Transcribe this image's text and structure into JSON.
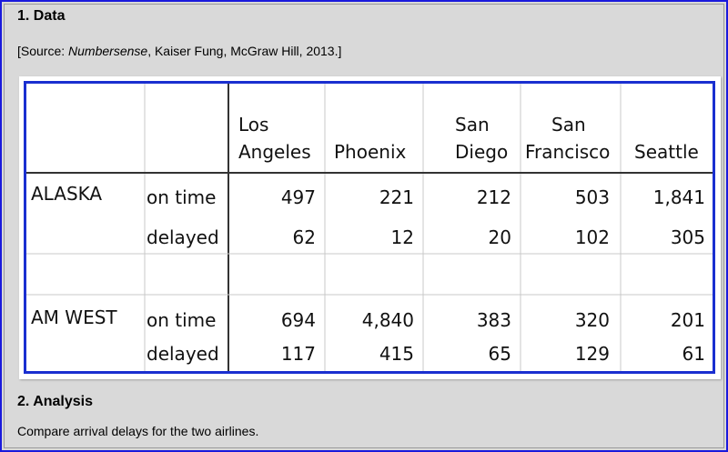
{
  "section1": {
    "heading": "1. Data",
    "source_prefix": "[Source:  ",
    "source_title": "Numbersense",
    "source_suffix": ", Kaiser Fung, McGraw Hill, 2013.]"
  },
  "table": {
    "headers": [
      "Los",
      "Angeles",
      "Phoenix",
      "San",
      "Diego",
      "San",
      "Francisco",
      "Seattle"
    ],
    "rows": [
      {
        "airline": "ALASKA",
        "status": "on time",
        "values": [
          "497",
          "221",
          "212",
          "503",
          "1,841"
        ]
      },
      {
        "airline": "",
        "status": "delayed",
        "values": [
          "62",
          "12",
          "20",
          "102",
          "305"
        ]
      },
      {
        "airline": "AM WEST",
        "status": "on time",
        "values": [
          "694",
          "4,840",
          "383",
          "320",
          "201"
        ]
      },
      {
        "airline": "",
        "status": "delayed",
        "values": [
          "117",
          "415",
          "65",
          "129",
          "61"
        ]
      }
    ]
  },
  "section2": {
    "heading": "2. Analysis",
    "text": "Compare arrival delays for the two airlines."
  },
  "colors": {
    "frame_border": "#1a1adc",
    "table_border": "#1a2fd0",
    "background": "#d9d9d9"
  }
}
